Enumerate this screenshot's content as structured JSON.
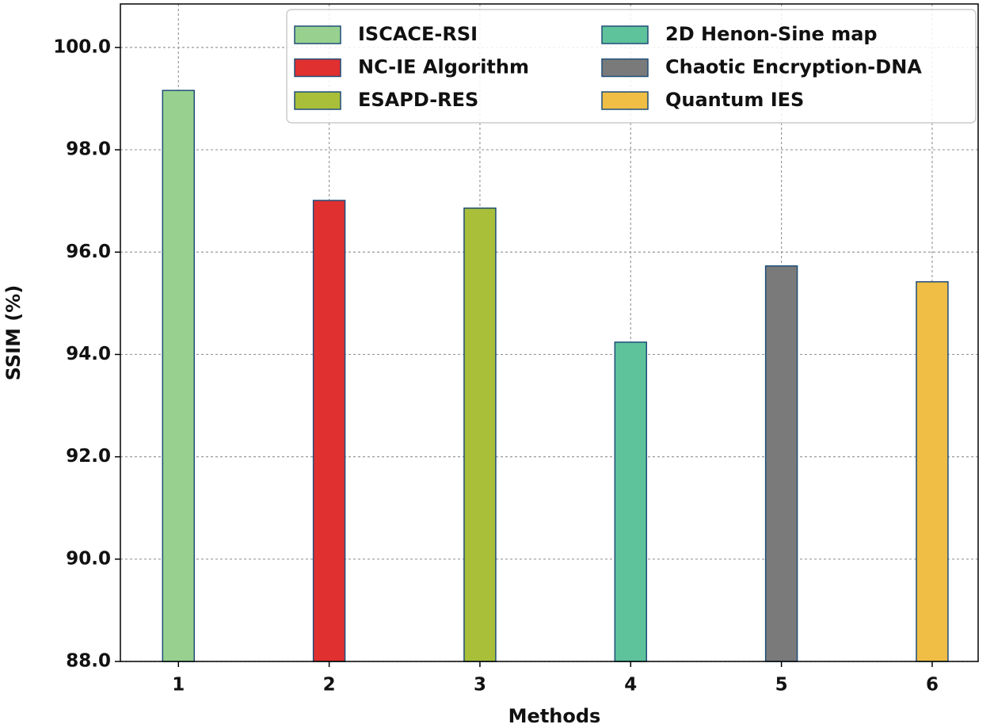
{
  "chart_data": {
    "type": "bar",
    "x_label": "Methods",
    "y_label": "SSIM (%)",
    "xlim": [
      0.615,
      6.305
    ],
    "ylim": [
      88,
      100.85
    ],
    "xticks": [
      1,
      2,
      3,
      4,
      5,
      6
    ],
    "yticks": [
      {
        "value": 88,
        "label": "88.0"
      },
      {
        "value": 90,
        "label": "90.0"
      },
      {
        "value": 92,
        "label": "92.0"
      },
      {
        "value": 94,
        "label": "94.0"
      },
      {
        "value": 96,
        "label": "96.0"
      },
      {
        "value": 98,
        "label": "98.0"
      },
      {
        "value": 100,
        "label": "100.0"
      }
    ],
    "grid": true,
    "legend_position": "upper right",
    "series": [
      {
        "name": "ISCACE-RSI",
        "color": "#98d08f",
        "x": [
          1
        ],
        "values": [
          99.16
        ]
      },
      {
        "name": "NC-IE Algorithm",
        "color": "#e03030",
        "x": [
          2
        ],
        "values": [
          97.01
        ]
      },
      {
        "name": "ESAPD-RES",
        "color": "#a9bf3a",
        "x": [
          3
        ],
        "values": [
          96.86
        ]
      },
      {
        "name": "2D Henon-Sine map",
        "color": "#5ec29a",
        "x": [
          4
        ],
        "values": [
          94.24
        ]
      },
      {
        "name": "Chaotic Encryption-DNA",
        "color": "#7a7a7a",
        "x": [
          5
        ],
        "values": [
          95.73
        ]
      },
      {
        "name": "Quantum IES",
        "color": "#f0bd45",
        "x": [
          6
        ],
        "values": [
          95.42
        ]
      }
    ]
  }
}
